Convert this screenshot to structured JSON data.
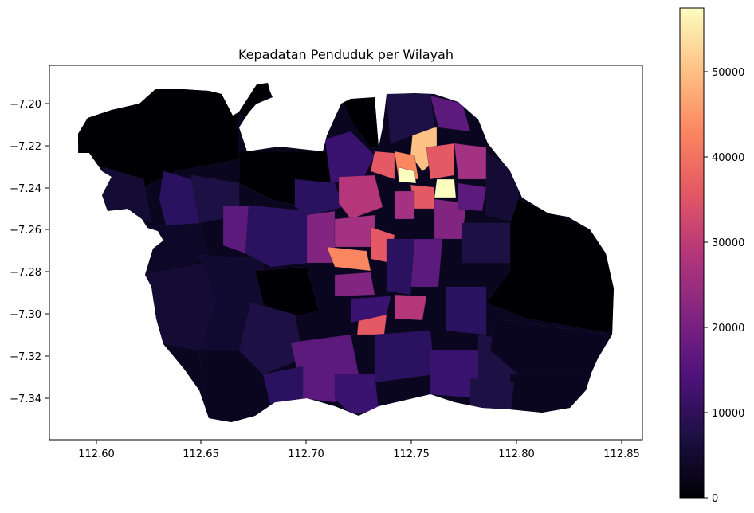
{
  "map": {
    "title": "Kepadatan Penduduk per Wilayah",
    "x_ticks": [
      "112.60",
      "112.65",
      "112.70",
      "112.75",
      "112.80",
      "112.85"
    ],
    "y_ticks": [
      "−7.20",
      "−7.22",
      "−7.24",
      "−7.26",
      "−7.28",
      "−7.30",
      "−7.32",
      "−7.34"
    ],
    "colormap": "magma",
    "colors": [
      "#000004",
      "#1c1044",
      "#4f127b",
      "#812581",
      "#b5367a",
      "#e55964",
      "#fb8761",
      "#fec287",
      "#fcfdbf"
    ],
    "colorbar": {
      "ticks": [
        "0",
        "10000",
        "20000",
        "30000",
        "40000",
        "50000"
      ],
      "range": [
        0,
        57500
      ]
    }
  }
}
